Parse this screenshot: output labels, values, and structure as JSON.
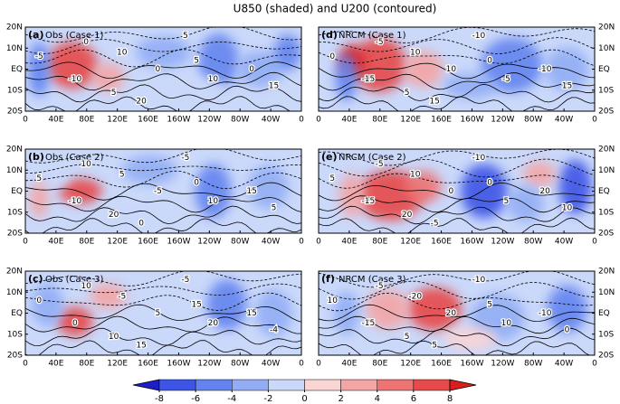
{
  "title": "U850 (shaded) and U200 (contoured)",
  "x_ticks": [
    "0",
    "40E",
    "80E",
    "120E",
    "160E",
    "160W",
    "120W",
    "80W",
    "40W",
    "0"
  ],
  "y_ticks": [
    "20N",
    "10N",
    "EQ",
    "10S",
    "20S"
  ],
  "panels": [
    {
      "tag": "(a)",
      "name": "Obs (Case 1)",
      "contour_labels": [
        "0",
        "5",
        "5",
        "-10",
        "10",
        "0",
        "5",
        "10",
        "20",
        "15",
        "0",
        "-5"
      ]
    },
    {
      "tag": "(b)",
      "name": "Obs (Case 2)",
      "contour_labels": [
        "10",
        "-5",
        "0",
        "-10",
        "5",
        "15",
        "20",
        "10",
        "0",
        "5",
        "-5",
        "5"
      ]
    },
    {
      "tag": "(c)",
      "name": "Obs (Case 3)",
      "contour_labels": [
        "10",
        "-5",
        "15",
        "0",
        "-5",
        "15",
        "10",
        "20",
        "15",
        "-4",
        "5",
        "0"
      ]
    },
    {
      "tag": "(d)",
      "name": "NRCM (Case 1)",
      "contour_labels": [
        "-5",
        "-10",
        "0",
        "-15",
        "10",
        "-10",
        "5",
        "-5",
        "15",
        "15",
        "10",
        "0"
      ]
    },
    {
      "tag": "(e)",
      "name": "NRCM (Case 2)",
      "contour_labels": [
        "-5",
        "-10",
        "0",
        "-15",
        "10",
        "20",
        "20",
        "5",
        "-5",
        "10",
        "0",
        "5"
      ]
    },
    {
      "tag": "(f)",
      "name": "NRCM (Case 3)",
      "contour_labels": [
        "-5",
        "-10",
        "5",
        "-15",
        "-20",
        "-10",
        "5",
        "10",
        "5",
        "0",
        "20",
        "10"
      ]
    }
  ],
  "colorbar": {
    "ticks": [
      -8,
      -6,
      -4,
      -2,
      0,
      2,
      4,
      6,
      8
    ],
    "colors": [
      "#1e1ec8",
      "#3d55e6",
      "#6384ef",
      "#92adf5",
      "#cad8fa",
      "#fbd4d4",
      "#f4a5a5",
      "#ee7474",
      "#e64a4a",
      "#d91e1e"
    ]
  }
}
